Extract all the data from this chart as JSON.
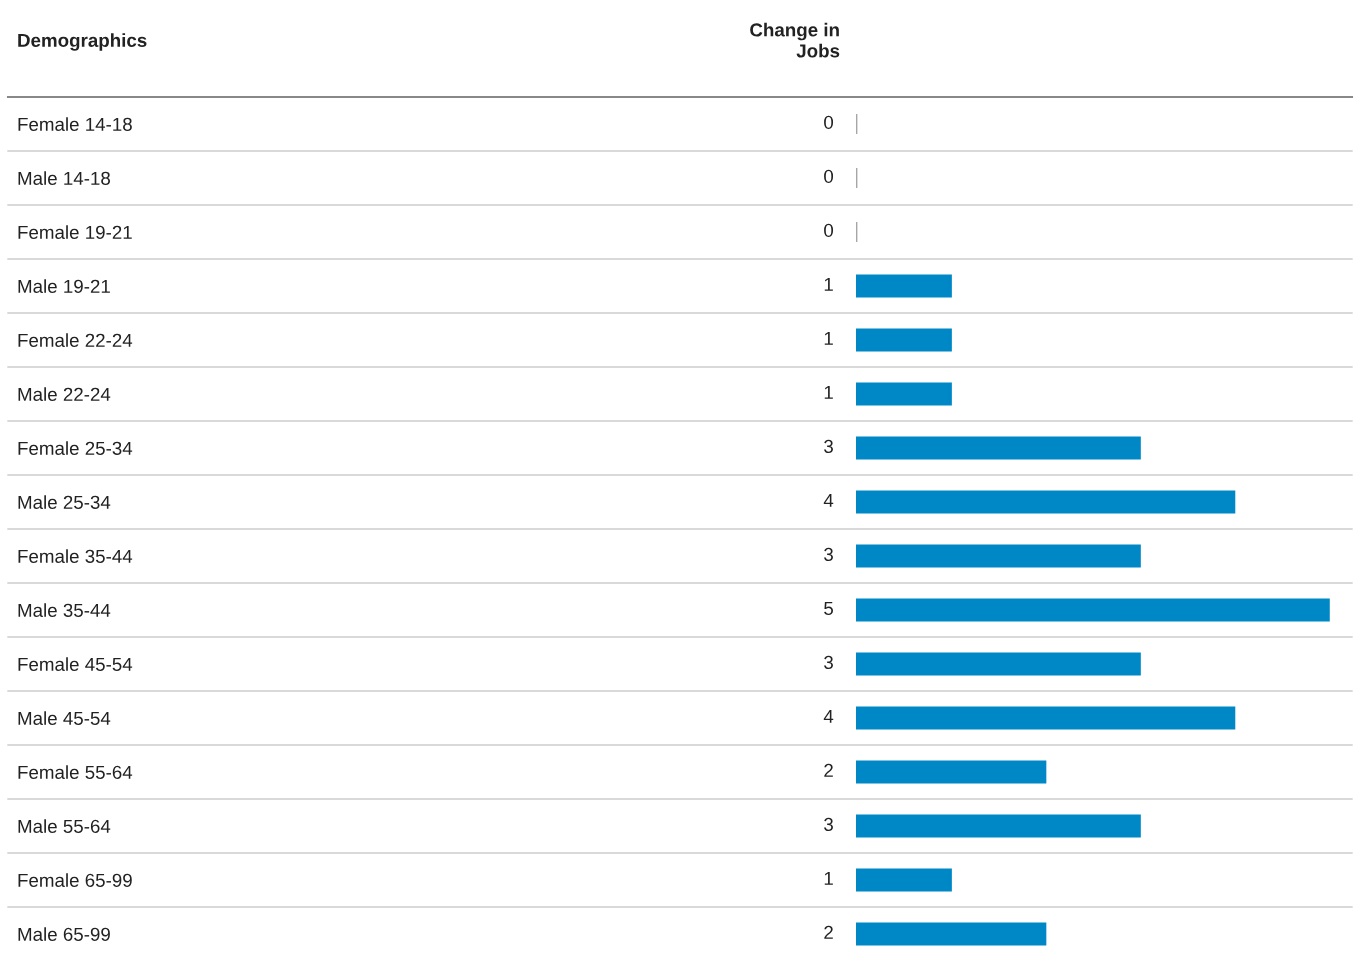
{
  "chart_data": {
    "type": "bar",
    "orientation": "horizontal",
    "ylabel": "Demographics",
    "xlabel": "Change in\nJobs",
    "categories": [
      "Female 14-18",
      "Male 14-18",
      "Female 19-21",
      "Male 19-21",
      "Female 22-24",
      "Male 22-24",
      "Female 25-34",
      "Male 25-34",
      "Female 35-44",
      "Male 35-44",
      "Female 45-54",
      "Male 45-54",
      "Female 55-64",
      "Male 55-64",
      "Female 65-99",
      "Male 65-99"
    ],
    "values": [
      0,
      0,
      0,
      1,
      1,
      1,
      3,
      4,
      3,
      5,
      3,
      4,
      2,
      3,
      1,
      2
    ],
    "colors": [
      "#a6a6a6",
      "#a6a6a6",
      "#a6a6a6",
      "#0087c6",
      "#0087c6",
      "#0087c6",
      "#0087c6",
      "#0087c6",
      "#0087c6",
      "#0087c6",
      "#0087c6",
      "#0087c6",
      "#0087c6",
      "#0087c6",
      "#0087c6",
      "#0087c6"
    ],
    "data_labels": true,
    "grid": false,
    "legend": false
  }
}
